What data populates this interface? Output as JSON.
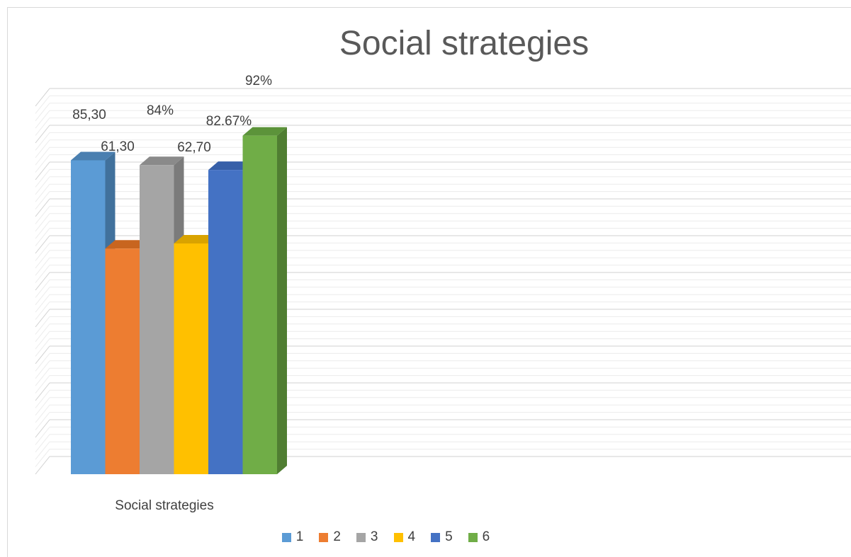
{
  "chart_data": {
    "type": "bar",
    "title": "Social strategies",
    "categories": [
      "Social strategies"
    ],
    "series": [
      {
        "name": "1",
        "value": 85.3,
        "label": "85,30",
        "color": "#5b9bd5",
        "side": "#41719c",
        "top": "#4a7fb0"
      },
      {
        "name": "2",
        "value": 61.3,
        "label": "61,30",
        "color": "#ed7d31",
        "side": "#ae5a21",
        "top": "#c8651f"
      },
      {
        "name": "3",
        "value": 84,
        "label": "84%",
        "color": "#a5a5a5",
        "side": "#7b7b7b",
        "top": "#8a8a8a"
      },
      {
        "name": "4",
        "value": 62.7,
        "label": "62,70",
        "color": "#ffc000",
        "side": "#bc8c00",
        "top": "#d9a300"
      },
      {
        "name": "5",
        "value": 82.67,
        "label": "82.67%",
        "color": "#4472c4",
        "side": "#2f5597",
        "top": "#365fa8"
      },
      {
        "name": "6",
        "value": 92,
        "label": "92%",
        "color": "#70ad47",
        "side": "#507e32",
        "top": "#5c933a"
      }
    ],
    "ylim": [
      0,
      100
    ],
    "grid": true,
    "legend": "bottom"
  }
}
